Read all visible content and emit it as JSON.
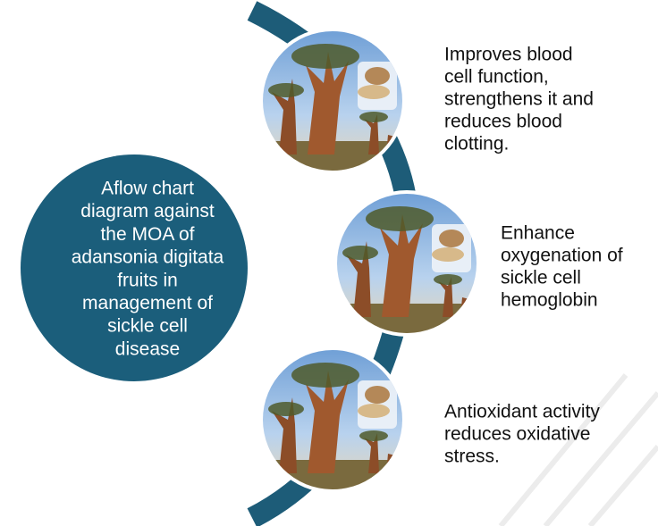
{
  "center": {
    "lines": [
      "Aflow chart",
      "diagram against",
      "the MOA of",
      "adansonia digitata",
      "fruits in",
      "management of",
      "sickle  cell",
      "disease"
    ]
  },
  "items": [
    {
      "lines": [
        "Improves blood",
        "cell function,",
        "strengthens it and",
        "reduces blood",
        "clotting."
      ]
    },
    {
      "lines": [
        "Enhance",
        "oxygenation of",
        "sickle cell",
        "hemoglobin"
      ]
    },
    {
      "lines": [
        "Antioxidant activity",
        "reduces oxidative",
        "stress."
      ]
    }
  ]
}
